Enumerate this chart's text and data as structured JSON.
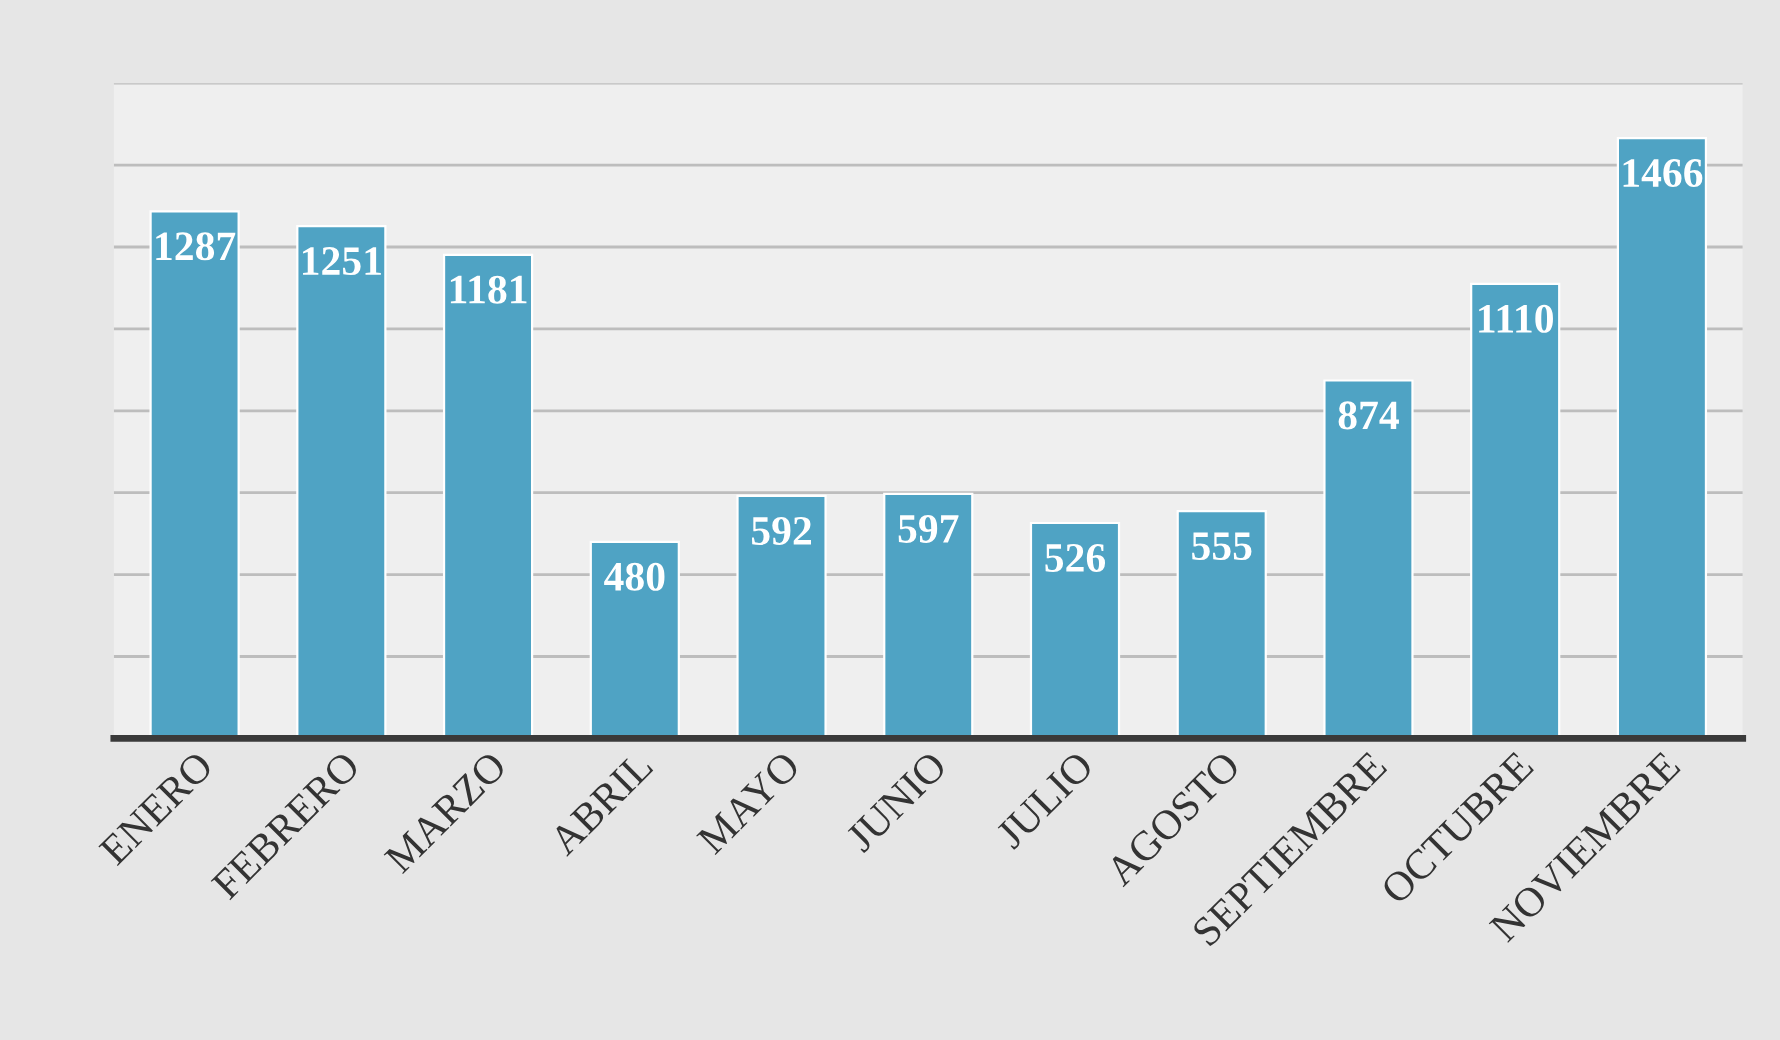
{
  "chart_data": {
    "type": "bar",
    "categories": [
      "ENERO",
      "FEBRERO",
      "MARZO",
      "ABRIL",
      "MAYO",
      "JUNIO",
      "JULIO",
      "AGOSTO",
      "SEPTIEMBRE",
      "OCTUBRE",
      "NOVIEMBRE"
    ],
    "values": [
      1287,
      1251,
      1181,
      480,
      592,
      597,
      526,
      555,
      874,
      1110,
      1466
    ],
    "color": "#4fa3c4",
    "ylim": [
      0,
      1600
    ],
    "yticks": [
      {
        "value": 0,
        "label": null
      },
      {
        "value": 200,
        "label": null
      },
      {
        "value": 400,
        "label": null
      },
      {
        "value": 600,
        "label": null
      },
      {
        "value": 800,
        "label": null
      },
      {
        "value": 1000,
        "label": null
      },
      {
        "value": 1200,
        "label": null
      },
      {
        "value": 1400,
        "label": null
      },
      {
        "value": 1600,
        "label": null
      }
    ],
    "tick_labels": "x",
    "grid": "y",
    "data_labels": true,
    "legend": false
  }
}
